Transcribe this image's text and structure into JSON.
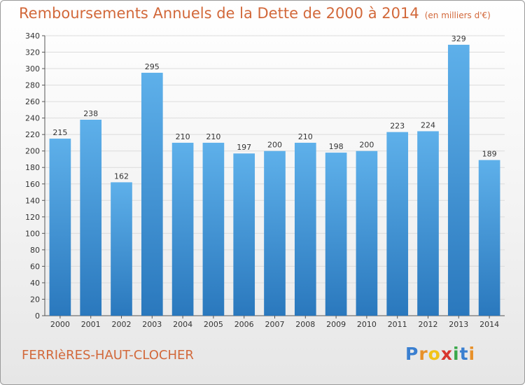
{
  "chart_data": {
    "type": "bar",
    "title": "Remboursements Annuels de la Dette de 2000 à 2014",
    "unit_note": "(en milliers d'€)",
    "categories": [
      "2000",
      "2001",
      "2002",
      "2003",
      "2004",
      "2005",
      "2006",
      "2007",
      "2008",
      "2009",
      "2010",
      "2011",
      "2012",
      "2013",
      "2014"
    ],
    "values": [
      215,
      238,
      162,
      295,
      210,
      210,
      197,
      200,
      210,
      198,
      200,
      223,
      224,
      329,
      189
    ],
    "ylim": [
      0,
      340
    ],
    "ytick_step": 20,
    "grid": true,
    "bar_color_top": "#5eb0ea",
    "bar_color_bottom": "#2a78bd"
  },
  "commune": "FERRIèRES-HAUT-CLOCHER",
  "logo": {
    "letters": [
      "P",
      "r",
      "o",
      "x",
      "i",
      "t",
      "i"
    ],
    "colors": [
      "#3a7fd0",
      "#e8912a",
      "#f2c318",
      "#d8352e",
      "#3aa84a",
      "#3a7fd0",
      "#e8912a"
    ]
  }
}
